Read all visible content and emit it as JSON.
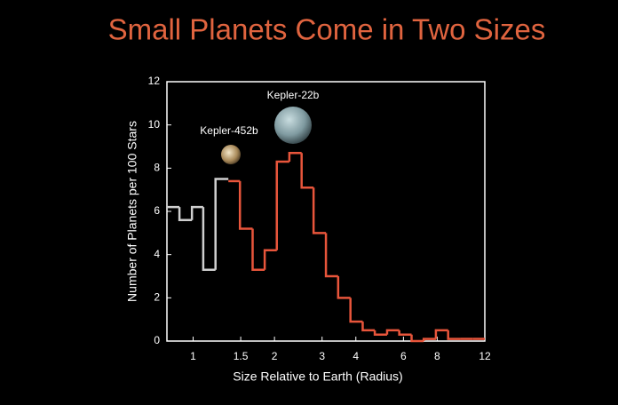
{
  "chart_data": {
    "type": "histogram",
    "title": "Small Planets Come in Two Sizes",
    "x_label": "Size Relative to Earth (Radius)",
    "y_label": "Number of Planets per 100 Stars",
    "log_x": true,
    "xlim": [
      0.8,
      12
    ],
    "xticks": [
      1,
      1.5,
      2,
      3,
      4,
      6,
      8,
      12
    ],
    "ylim": [
      0,
      12
    ],
    "yticks": [
      0,
      2,
      4,
      6,
      8,
      10,
      12
    ],
    "bins": [
      0.8,
      0.89,
      0.99,
      1.09,
      1.21,
      1.35,
      1.49,
      1.66,
      1.84,
      2.04,
      2.27,
      2.52,
      2.79,
      3.1,
      3.44,
      3.82,
      4.24,
      4.7,
      5.22,
      5.79,
      6.43,
      7.13,
      7.91,
      8.78,
      9.75,
      10.82,
      12.0
    ],
    "series": [
      {
        "color": "#cfcfcf",
        "values": [
          6.2,
          5.6,
          6.2,
          3.3,
          7.5,
          null,
          null,
          null,
          null,
          null,
          null,
          null,
          null,
          null,
          null,
          null,
          null,
          null,
          null,
          null,
          null,
          null,
          null,
          null,
          null,
          null
        ]
      },
      {
        "color": "#e8553b",
        "values": [
          null,
          null,
          null,
          null,
          null,
          7.4,
          5.2,
          3.3,
          4.2,
          8.3,
          8.7,
          7.1,
          5.0,
          3.0,
          2.0,
          0.9,
          0.5,
          0.3,
          0.5,
          0.3,
          0.0,
          0.1,
          0.5,
          0.1,
          0.1,
          0.1
        ]
      }
    ],
    "annotations": [
      "Kepler-452b",
      "Kepler-22b"
    ],
    "title_color": "#e0643f"
  }
}
